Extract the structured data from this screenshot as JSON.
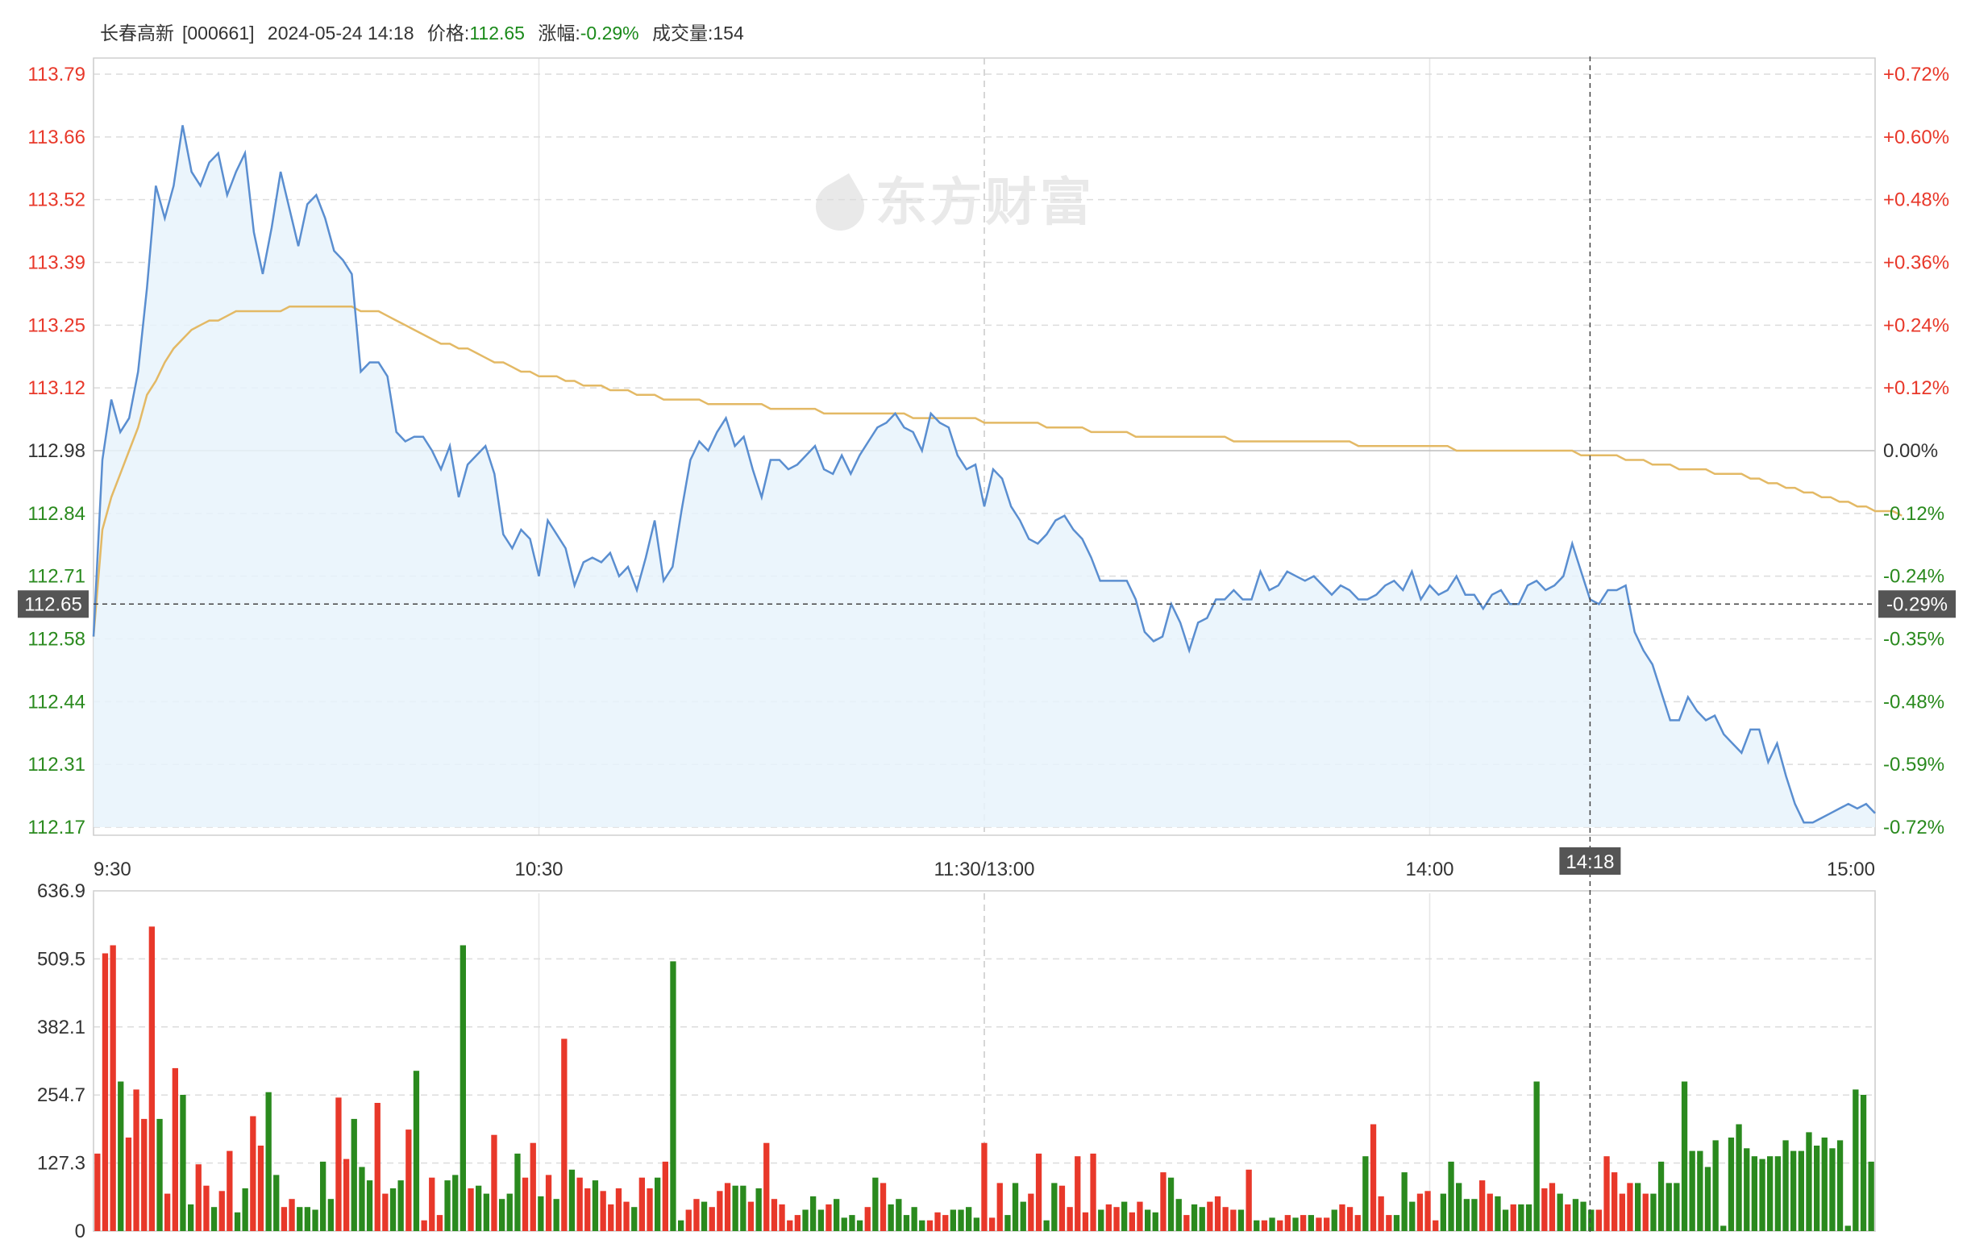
{
  "header": {
    "stock_name": "长春高新",
    "stock_code": "[000661]",
    "datetime": "2024-05-24 14:18",
    "price_label": "价格:",
    "price_value": "112.65",
    "change_label": "涨幅:",
    "change_value": "-0.29%",
    "volume_label": "成交量:",
    "volume_value": "154"
  },
  "watermark": "东方财富",
  "colors": {
    "up": "#e8382a",
    "down": "#2a8a1e",
    "price_line": "#5a8ed0",
    "avg_line": "#e3b965",
    "fill": "#e8f3fc",
    "crosshair_label_bg": "#555555"
  },
  "chart_data": {
    "type": "line",
    "title": "",
    "prev_close": 112.98,
    "ylim": [
      112.17,
      113.79
    ],
    "y_ticks": [
      "113.79",
      "113.66",
      "113.52",
      "113.39",
      "113.25",
      "113.12",
      "112.98",
      "112.84",
      "112.71",
      "112.58",
      "112.44",
      "112.31",
      "112.17"
    ],
    "pct_ticks": [
      "+0.72%",
      "+0.60%",
      "+0.48%",
      "+0.36%",
      "+0.24%",
      "+0.12%",
      "0.00%",
      "-0.12%",
      "-0.24%",
      "-0.35%",
      "-0.48%",
      "-0.59%",
      "-0.72%"
    ],
    "x_ticks": [
      "9:30",
      "10:30",
      "11:30/13:00",
      "14:00",
      "15:00"
    ],
    "crosshair": {
      "time": "14:18",
      "price": "112.65",
      "pct": "-0.29%",
      "index": 168
    },
    "series": [
      {
        "name": "price",
        "values": [
          112.58,
          112.96,
          113.09,
          113.02,
          113.05,
          113.15,
          113.33,
          113.55,
          113.48,
          113.55,
          113.68,
          113.58,
          113.55,
          113.6,
          113.62,
          113.53,
          113.58,
          113.62,
          113.45,
          113.36,
          113.46,
          113.58,
          113.5,
          113.42,
          113.51,
          113.53,
          113.48,
          113.41,
          113.39,
          113.36,
          113.15,
          113.17,
          113.17,
          113.14,
          113.02,
          113.0,
          113.01,
          113.01,
          112.98,
          112.94,
          112.99,
          112.88,
          112.95,
          112.97,
          112.99,
          112.93,
          112.8,
          112.77,
          112.81,
          112.79,
          112.71,
          112.83,
          112.8,
          112.77,
          112.69,
          112.74,
          112.75,
          112.74,
          112.76,
          112.71,
          112.73,
          112.68,
          112.75,
          112.83,
          112.7,
          112.73,
          112.85,
          112.96,
          113.0,
          112.98,
          113.02,
          113.05,
          112.99,
          113.01,
          112.94,
          112.88,
          112.96,
          112.96,
          112.94,
          112.95,
          112.97,
          112.99,
          112.94,
          112.93,
          112.97,
          112.93,
          112.97,
          113.0,
          113.03,
          113.04,
          113.06,
          113.03,
          113.02,
          112.98,
          113.06,
          113.04,
          113.03,
          112.97,
          112.94,
          112.95,
          112.86,
          112.94,
          112.92,
          112.86,
          112.83,
          112.79,
          112.78,
          112.8,
          112.83,
          112.84,
          112.81,
          112.79,
          112.75,
          112.7,
          112.7,
          112.7,
          112.7,
          112.66,
          112.59,
          112.57,
          112.58,
          112.65,
          112.61,
          112.55,
          112.61,
          112.62,
          112.66,
          112.66,
          112.68,
          112.66,
          112.66,
          112.72,
          112.68,
          112.69,
          112.72,
          112.71,
          112.7,
          112.71,
          112.69,
          112.67,
          112.69,
          112.68,
          112.66,
          112.66,
          112.67,
          112.69,
          112.7,
          112.68,
          112.72,
          112.66,
          112.69,
          112.67,
          112.68,
          112.71,
          112.67,
          112.67,
          112.64,
          112.67,
          112.68,
          112.65,
          112.65,
          112.69,
          112.7,
          112.68,
          112.69,
          112.71,
          112.78,
          112.72,
          112.66,
          112.65,
          112.68,
          112.68,
          112.69,
          112.59,
          112.55,
          112.52,
          112.46,
          112.4,
          112.4,
          112.45,
          112.42,
          112.4,
          112.41,
          112.37,
          112.35,
          112.33,
          112.38,
          112.38,
          112.31,
          112.35,
          112.28,
          112.22,
          112.18,
          112.18,
          112.19,
          112.2,
          112.21,
          112.22,
          112.21,
          112.22,
          112.2
        ]
      },
      {
        "name": "avg",
        "values": [
          112.58,
          112.81,
          112.88,
          112.93,
          112.98,
          113.03,
          113.1,
          113.13,
          113.17,
          113.2,
          113.22,
          113.24,
          113.25,
          113.26,
          113.26,
          113.27,
          113.28,
          113.28,
          113.28,
          113.28,
          113.28,
          113.28,
          113.29,
          113.29,
          113.29,
          113.29,
          113.29,
          113.29,
          113.29,
          113.29,
          113.28,
          113.28,
          113.28,
          113.27,
          113.26,
          113.25,
          113.24,
          113.23,
          113.22,
          113.21,
          113.21,
          113.2,
          113.2,
          113.19,
          113.18,
          113.17,
          113.17,
          113.16,
          113.15,
          113.15,
          113.14,
          113.14,
          113.14,
          113.13,
          113.13,
          113.12,
          113.12,
          113.12,
          113.11,
          113.11,
          113.11,
          113.1,
          113.1,
          113.1,
          113.09,
          113.09,
          113.09,
          113.09,
          113.09,
          113.08,
          113.08,
          113.08,
          113.08,
          113.08,
          113.08,
          113.08,
          113.07,
          113.07,
          113.07,
          113.07,
          113.07,
          113.07,
          113.06,
          113.06,
          113.06,
          113.06,
          113.06,
          113.06,
          113.06,
          113.06,
          113.06,
          113.06,
          113.05,
          113.05,
          113.05,
          113.05,
          113.05,
          113.05,
          113.05,
          113.05,
          113.04,
          113.04,
          113.04,
          113.04,
          113.04,
          113.04,
          113.04,
          113.03,
          113.03,
          113.03,
          113.03,
          113.03,
          113.02,
          113.02,
          113.02,
          113.02,
          113.02,
          113.01,
          113.01,
          113.01,
          113.01,
          113.01,
          113.01,
          113.01,
          113.01,
          113.01,
          113.01,
          113.01,
          113.0,
          113.0,
          113.0,
          113.0,
          113.0,
          113.0,
          113.0,
          113.0,
          113.0,
          113.0,
          113.0,
          113.0,
          113.0,
          113.0,
          112.99,
          112.99,
          112.99,
          112.99,
          112.99,
          112.99,
          112.99,
          112.99,
          112.99,
          112.99,
          112.99,
          112.98,
          112.98,
          112.98,
          112.98,
          112.98,
          112.98,
          112.98,
          112.98,
          112.98,
          112.98,
          112.98,
          112.98,
          112.98,
          112.98,
          112.97,
          112.97,
          112.97,
          112.97,
          112.97,
          112.96,
          112.96,
          112.96,
          112.95,
          112.95,
          112.95,
          112.94,
          112.94,
          112.94,
          112.94,
          112.93,
          112.93,
          112.93,
          112.93,
          112.92,
          112.92,
          112.91,
          112.91,
          112.9,
          112.9,
          112.89,
          112.89,
          112.88,
          112.88,
          112.87,
          112.87,
          112.86,
          112.86,
          112.85,
          112.85,
          112.85,
          112.84
        ]
      }
    ],
    "volume": {
      "ylim": [
        0,
        636.9
      ],
      "y_ticks": [
        "636.9",
        "509.5",
        "382.1",
        "254.7",
        "127.3",
        "0"
      ],
      "values": [
        145,
        520,
        535,
        280,
        175,
        265,
        210,
        570,
        210,
        70,
        305,
        255,
        50,
        125,
        85,
        45,
        75,
        150,
        35,
        80,
        215,
        160,
        260,
        105,
        45,
        60,
        45,
        45,
        40,
        130,
        60,
        250,
        135,
        210,
        120,
        95,
        240,
        70,
        80,
        95,
        190,
        300,
        20,
        100,
        30,
        95,
        105,
        535,
        80,
        85,
        70,
        180,
        60,
        70,
        145,
        100,
        165,
        65,
        105,
        60,
        360,
        115,
        100,
        80,
        95,
        75,
        50,
        80,
        55,
        45,
        100,
        80,
        100,
        130,
        505,
        20,
        40,
        60,
        55,
        45,
        75,
        90,
        85,
        85,
        55,
        80,
        165,
        60,
        50,
        20,
        30,
        40,
        65,
        40,
        50,
        60,
        25,
        30,
        20,
        45,
        100,
        90,
        50,
        60,
        30,
        45,
        20,
        20,
        35,
        30,
        40,
        40,
        45,
        25,
        165,
        25,
        90,
        30,
        90,
        55,
        70,
        145,
        20,
        90,
        85,
        45,
        140,
        35,
        145,
        40,
        50,
        45,
        55,
        35,
        55,
        40,
        35,
        110,
        100,
        60,
        30,
        50,
        45,
        55,
        65,
        45,
        40,
        40,
        115,
        20,
        20,
        25,
        20,
        30,
        25,
        30,
        30,
        25,
        25,
        40,
        50,
        45,
        30,
        140,
        200,
        65,
        30,
        30,
        110,
        55,
        70,
        75,
        20,
        70,
        130,
        90,
        60,
        60,
        95,
        70,
        65,
        40,
        50,
        50,
        50,
        280,
        80,
        90,
        70,
        50,
        60,
        55,
        40,
        40,
        140,
        110,
        70,
        90,
        90,
        70,
        70,
        130,
        90,
        90,
        280,
        150,
        150,
        120,
        170,
        10,
        175,
        200,
        155,
        140,
        135,
        140,
        140,
        170,
        150,
        150,
        185,
        160,
        175,
        155,
        170,
        10,
        265,
        255,
        130
      ]
    }
  }
}
